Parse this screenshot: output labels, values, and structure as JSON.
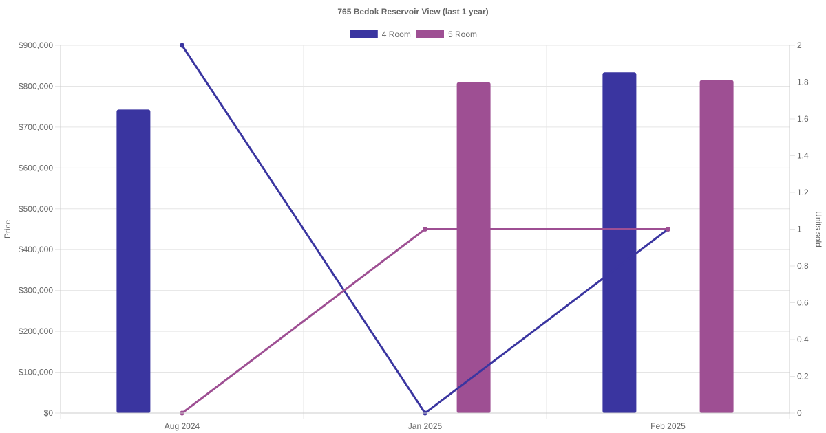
{
  "chart_data": {
    "type": "bar",
    "title": "765 Bedok Reservoir View (last 1 year)",
    "categories": [
      "Aug 2024",
      "Jan 2025",
      "Feb 2025"
    ],
    "y_left": {
      "label": "Price",
      "range": [
        0,
        900000
      ],
      "ticks": [
        "$0",
        "$100,000",
        "$200,000",
        "$300,000",
        "$400,000",
        "$500,000",
        "$600,000",
        "$700,000",
        "$800,000",
        "$900,000"
      ]
    },
    "y_right": {
      "label": "Units sold",
      "range": [
        0,
        2
      ],
      "ticks": [
        "0",
        "0.2",
        "0.4",
        "0.6",
        "0.8",
        "1",
        "1.2",
        "1.4",
        "1.6",
        "1.8",
        "2"
      ]
    },
    "grid": true,
    "legend_position": "top-center",
    "series": [
      {
        "name": "4 Room",
        "color": "#3a35a0",
        "price": [
          743000,
          null,
          834000
        ],
        "units_sold": [
          2,
          0,
          1
        ]
      },
      {
        "name": "5 Room",
        "color": "#9e4f93",
        "price": [
          null,
          810000,
          815000
        ],
        "units_sold": [
          0,
          1,
          1
        ]
      }
    ]
  }
}
